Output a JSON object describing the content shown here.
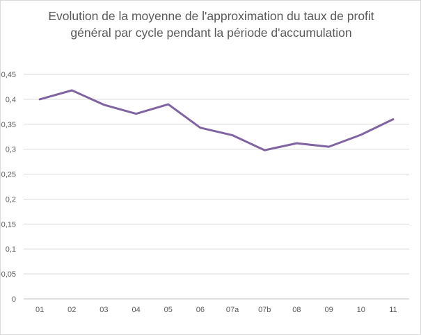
{
  "chart_data": {
    "type": "line",
    "title_lines": [
      "Evolution de la moyenne de l'approximation du taux de profit",
      "général par cycle pendant la période d'accumulation"
    ],
    "xlabel": "",
    "ylabel": "",
    "categories": [
      "01",
      "02",
      "03",
      "04",
      "05",
      "06",
      "07a",
      "07b",
      "08",
      "09",
      "10",
      "11"
    ],
    "series": [
      {
        "values": [
          0.4,
          0.418,
          0.389,
          0.371,
          0.39,
          0.343,
          0.328,
          0.298,
          0.312,
          0.305,
          0.329,
          0.36
        ]
      }
    ],
    "ylim": [
      0,
      0.45
    ],
    "yticks": [
      0,
      0.05,
      0.1,
      0.15,
      0.2,
      0.25,
      0.3,
      0.35,
      0.4,
      0.45
    ],
    "ytick_labels": [
      "0",
      "0,05",
      "0,1",
      "0,15",
      "0,2",
      "0,25",
      "0,3",
      "0,35",
      "0,4",
      "0,45"
    ],
    "grid": true,
    "legend": "none",
    "colors": {
      "line": "#8064a2",
      "grid": "#d9d9d9",
      "text": "#595959"
    }
  }
}
